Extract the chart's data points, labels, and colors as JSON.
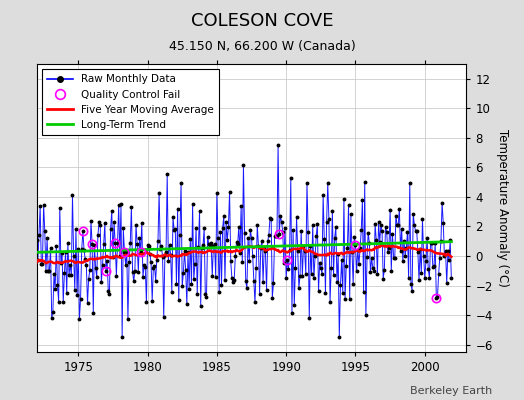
{
  "title": "COLESON COVE",
  "subtitle": "45.150 N, 66.200 W (Canada)",
  "ylabel": "Temperature Anomaly (°C)",
  "watermark": "Berkeley Earth",
  "ylim": [
    -6.5,
    13
  ],
  "xlim": [
    1972.0,
    2003.0
  ],
  "yticks": [
    -6,
    -4,
    -2,
    0,
    2,
    4,
    6,
    8,
    10,
    12
  ],
  "xticks": [
    1975,
    1980,
    1985,
    1990,
    1995,
    2000
  ],
  "raw_color": "#0000ff",
  "dot_color": "#000000",
  "ma_color": "#ff0000",
  "trend_color": "#00cc00",
  "qc_color": "#ff00ff",
  "bg_color": "#dddddd",
  "plot_bg": "#ffffff",
  "seed": 42,
  "n_months": 360,
  "start_year": 1972.0,
  "qc_indices": [
    40,
    48,
    60,
    68,
    76,
    90,
    210,
    217,
    276,
    346
  ]
}
